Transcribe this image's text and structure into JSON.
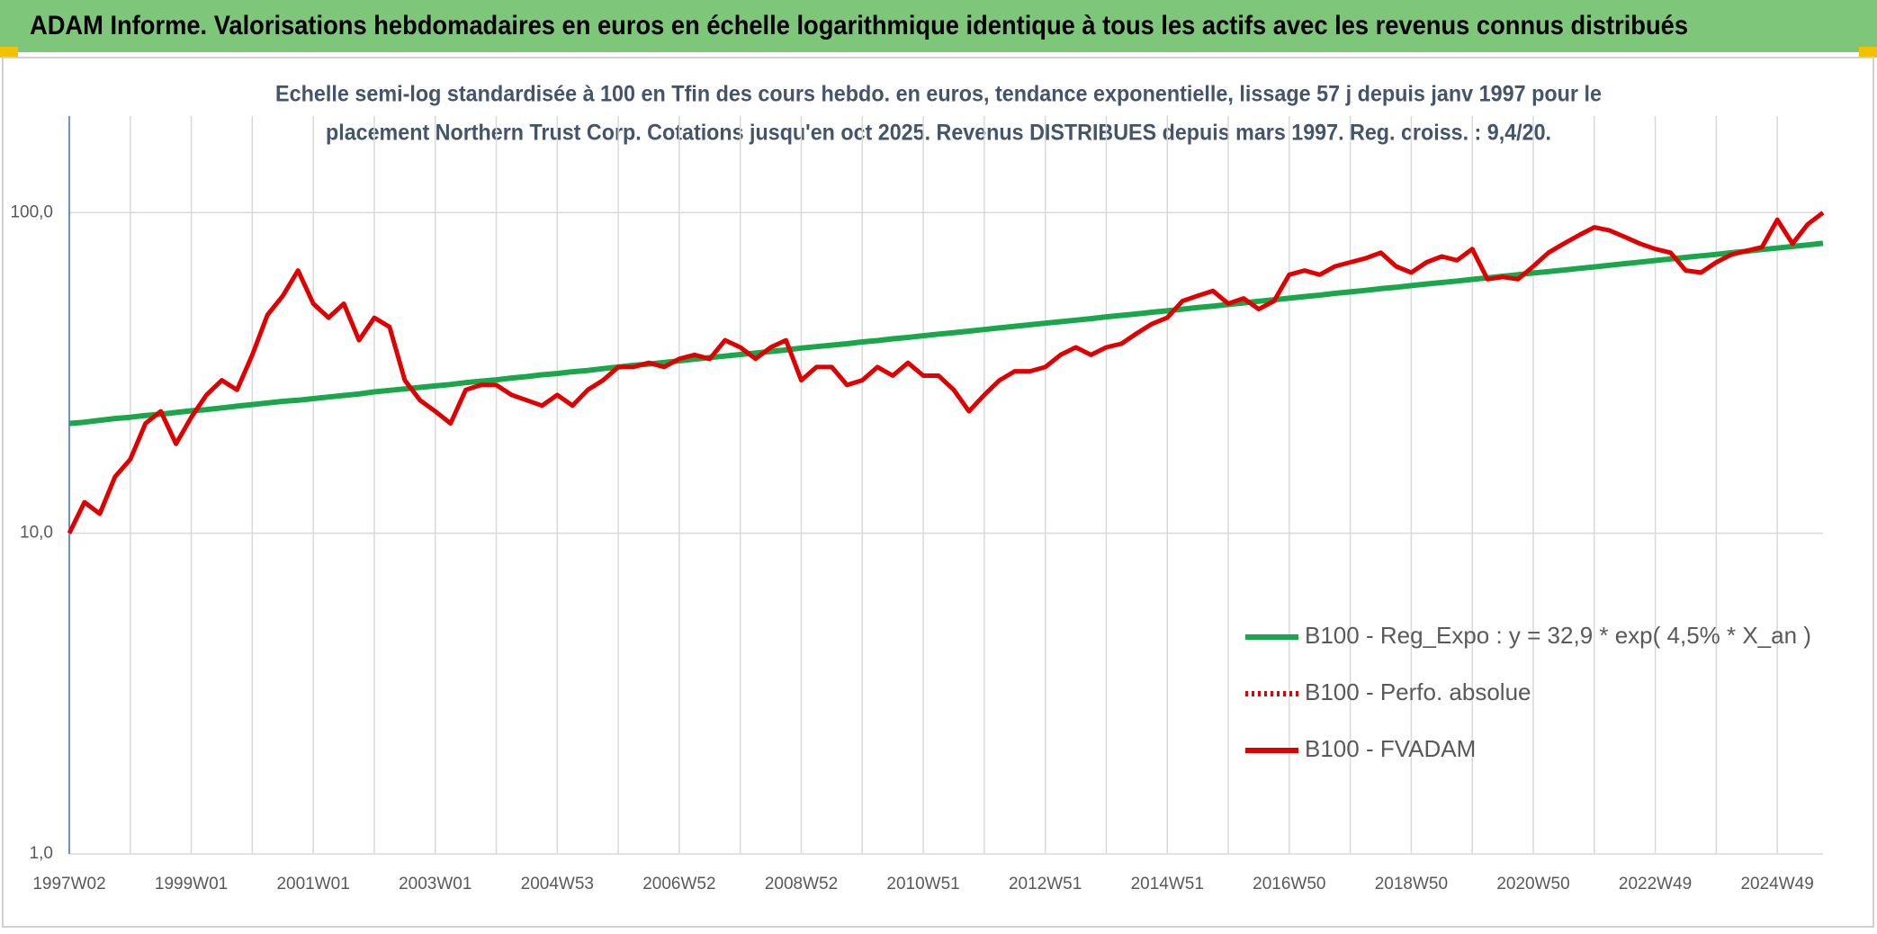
{
  "chart_data": {
    "type": "line",
    "title": "ADAM Informe. Valorisations hebdomadaires en euros en échelle logarithmique identique à tous les actifs avec les revenus connus distribués",
    "subtitle": [
      "Echelle semi-log standardisée à 100 en Tfin des cours hebdo. en euros, tendance exponentielle, lissage 57 j depuis janv 1997 pour le",
      "placement Northern Trust Corp. Cotations jusqu'en oct 2025. Revenus DISTRIBUES depuis mars 1997. Reg. croiss. : 9,4/20."
    ],
    "categories": [
      "1997W02",
      null,
      null,
      null,
      null,
      null,
      null,
      null,
      "1999W01",
      null,
      null,
      null,
      null,
      null,
      null,
      null,
      "2001W01",
      null,
      null,
      null,
      null,
      null,
      null,
      null,
      "2003W01",
      null,
      null,
      null,
      null,
      null,
      null,
      null,
      "2004W53",
      null,
      null,
      null,
      null,
      null,
      null,
      null,
      "2006W52",
      null,
      null,
      null,
      null,
      null,
      null,
      null,
      "2008W52",
      null,
      null,
      null,
      null,
      null,
      null,
      null,
      "2010W51",
      null,
      null,
      null,
      null,
      null,
      null,
      null,
      "2012W51",
      null,
      null,
      null,
      null,
      null,
      null,
      null,
      "2014W51",
      null,
      null,
      null,
      null,
      null,
      null,
      null,
      "2016W50",
      null,
      null,
      null,
      null,
      null,
      null,
      null,
      "2018W50",
      null,
      null,
      null,
      null,
      null,
      null,
      null,
      "2020W50",
      null,
      null,
      null,
      null,
      null,
      null,
      null,
      "2022W49",
      null,
      null,
      null,
      null,
      null,
      null,
      null,
      "2024W49",
      null,
      null,
      null
    ],
    "series": [
      {
        "name": "B100 - Reg_Expo : y = 32,9 * exp( 4,5% *  X_an )",
        "color": "#1aa64a",
        "dash": "solid",
        "values": [
          22.0,
          22.2,
          22.5,
          22.8,
          23.0,
          23.3,
          23.5,
          23.8,
          24.1,
          24.3,
          24.6,
          24.9,
          25.2,
          25.5,
          25.8,
          26.0,
          26.3,
          26.6,
          26.9,
          27.2,
          27.6,
          27.9,
          28.2,
          28.5,
          28.8,
          29.1,
          29.5,
          29.8,
          30.1,
          30.5,
          30.8,
          31.2,
          31.5,
          31.9,
          32.2,
          32.6,
          33.0,
          33.4,
          33.7,
          34.1,
          34.5,
          34.9,
          35.3,
          35.7,
          36.1,
          36.5,
          36.9,
          37.3,
          37.8,
          38.2,
          38.6,
          39.0,
          39.5,
          39.9,
          40.4,
          40.8,
          41.3,
          41.8,
          42.2,
          42.7,
          43.2,
          43.7,
          44.2,
          44.7,
          45.2,
          45.7,
          46.2,
          46.7,
          47.3,
          47.8,
          48.3,
          48.9,
          49.4,
          50.0,
          50.6,
          51.1,
          51.7,
          52.3,
          52.9,
          53.5,
          54.1,
          54.7,
          55.3,
          56.0,
          56.6,
          57.2,
          57.9,
          58.5,
          59.2,
          59.9,
          60.5,
          61.2,
          61.9,
          62.6,
          63.3,
          64.0,
          64.8,
          65.5,
          66.2,
          67.0,
          67.7,
          68.5,
          69.3,
          70.1,
          70.9,
          71.7,
          72.5,
          73.3,
          74.1,
          75.0,
          75.8,
          76.7,
          77.5,
          78.4,
          79.3,
          80.2
        ]
      },
      {
        "name": "B100 - Perfo. absolue",
        "color": "#e00000",
        "dash": "dotted"
      },
      {
        "name": "B100 - FVADAM",
        "color": "#e00000",
        "dash": "solid",
        "values": [
          10,
          12.5,
          11.5,
          15,
          17,
          22,
          24,
          19,
          23,
          27,
          30,
          28,
          36,
          48,
          55,
          66,
          52,
          47,
          52,
          40,
          47,
          44,
          30,
          26,
          24,
          22,
          28,
          29,
          29,
          27,
          26,
          25,
          27,
          25,
          28,
          30,
          33,
          33,
          34,
          33,
          35,
          36,
          35,
          40,
          38,
          35,
          38,
          40,
          30,
          33,
          33,
          29,
          30,
          33,
          31,
          34,
          31,
          31,
          28,
          24,
          27,
          30,
          32,
          32,
          33,
          36,
          38,
          36,
          38,
          39,
          42,
          45,
          47,
          53,
          55,
          57,
          52,
          54,
          50,
          53,
          64,
          66,
          64,
          68,
          70,
          72,
          75,
          68,
          65,
          70,
          73,
          71,
          77,
          62,
          63,
          62,
          68,
          75,
          80,
          85,
          90,
          88,
          84,
          80,
          77,
          75,
          66,
          65,
          70,
          74,
          76,
          78,
          95,
          80,
          92,
          100
        ]
      }
    ],
    "ylim": [
      1,
      200
    ],
    "yticks": [
      {
        "value": 1,
        "label": "1,0"
      },
      {
        "value": 10,
        "label": "10,0"
      },
      {
        "value": 100,
        "label": "100,0"
      }
    ],
    "log_y": true,
    "grid": true,
    "legend": "right"
  }
}
